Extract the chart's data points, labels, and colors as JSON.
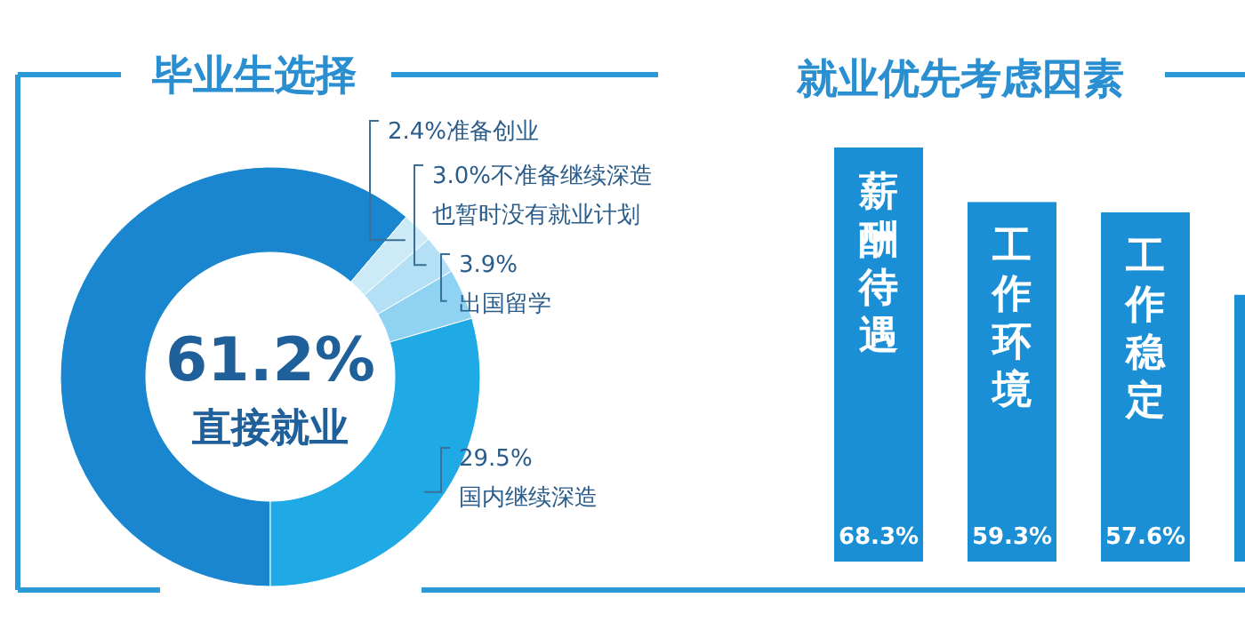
{
  "chart_data": [
    {
      "type": "donut",
      "title": "毕业生选择",
      "categories": [
        "直接就业",
        "准备创业",
        "不准备继续深造也暂时没有就业计划",
        "出国留学",
        "国内继续深造"
      ],
      "values": [
        61.2,
        2.4,
        3.0,
        3.9,
        29.5
      ],
      "value_labels": [
        "61.2%",
        "2.4%",
        "3.0%",
        "3.9%",
        "29.5%"
      ],
      "colors": [
        "#1a86cf",
        "#cdeaf7",
        "#b3e0f4",
        "#8fd2f1",
        "#1fa9e5"
      ]
    },
    {
      "type": "bar",
      "title": "就业优先考虑因素",
      "categories": [
        "薪酬待遇",
        "工作环境",
        "工作稳定",
        null
      ],
      "values": [
        68.3,
        59.3,
        57.6,
        44
      ],
      "value_labels": [
        "68.3%",
        "59.3%",
        "57.6%",
        null
      ],
      "color": "#1a8fd6"
    }
  ]
}
